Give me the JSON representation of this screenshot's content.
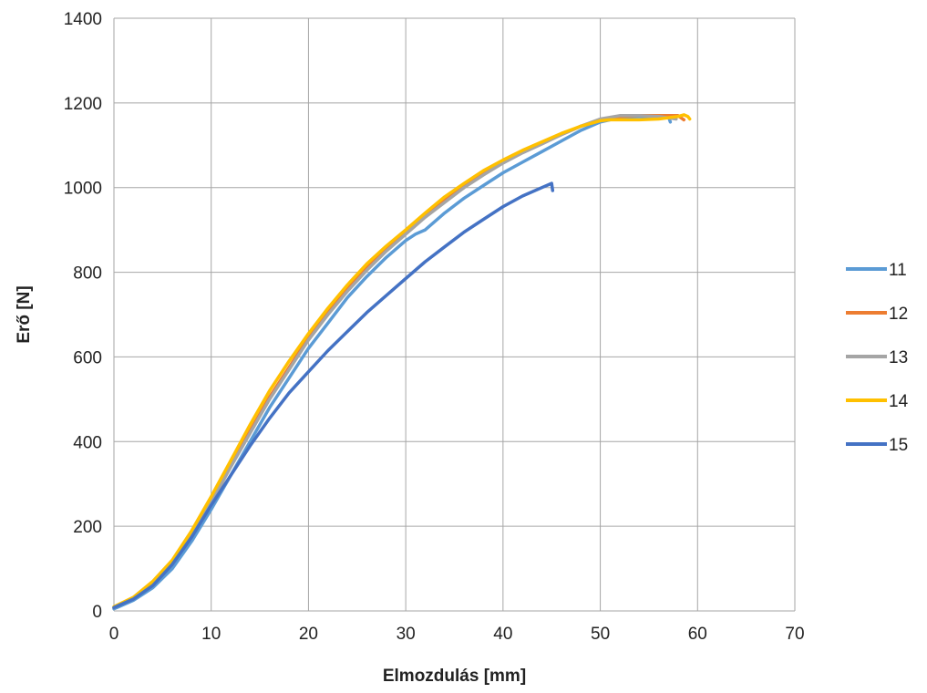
{
  "chart_data": {
    "type": "line",
    "title": "",
    "xlabel": "Elmozdulás [mm]",
    "ylabel": "Erő [N]",
    "xlim": [
      0,
      70
    ],
    "ylim": [
      0,
      1400
    ],
    "x_ticks": [
      0,
      10,
      20,
      30,
      40,
      50,
      60,
      70
    ],
    "y_ticks": [
      0,
      200,
      400,
      600,
      800,
      1000,
      1200,
      1400
    ],
    "grid": true,
    "legend_position": "right",
    "series": [
      {
        "name": "11",
        "color": "#5b9bd5",
        "x": [
          0,
          2,
          4,
          6,
          8,
          10,
          12,
          14,
          16,
          18,
          20,
          22,
          24,
          26,
          28,
          30,
          31,
          32,
          34,
          36,
          38,
          40,
          42,
          44,
          46,
          48,
          50,
          52,
          54,
          56,
          57,
          57.2
        ],
        "y": [
          5,
          25,
          55,
          100,
          165,
          240,
          320,
          400,
          480,
          550,
          620,
          680,
          740,
          790,
          835,
          875,
          890,
          900,
          940,
          975,
          1005,
          1035,
          1060,
          1085,
          1110,
          1135,
          1155,
          1165,
          1168,
          1168,
          1168,
          1155
        ]
      },
      {
        "name": "12",
        "color": "#ed7d31",
        "x": [
          0,
          2,
          4,
          6,
          8,
          10,
          12,
          14,
          16,
          18,
          20,
          22,
          24,
          26,
          28,
          30,
          32,
          34,
          36,
          38,
          40,
          42,
          44,
          46,
          48,
          50,
          52,
          54,
          56,
          58,
          58.6
        ],
        "y": [
          8,
          30,
          65,
          115,
          180,
          260,
          345,
          425,
          505,
          575,
          645,
          705,
          760,
          810,
          855,
          895,
          935,
          970,
          1005,
          1035,
          1060,
          1085,
          1105,
          1125,
          1145,
          1160,
          1168,
          1170,
          1170,
          1170,
          1160
        ]
      },
      {
        "name": "13",
        "color": "#a5a5a5",
        "x": [
          0,
          2,
          4,
          6,
          8,
          10,
          12,
          14,
          16,
          18,
          20,
          22,
          24,
          26,
          28,
          30,
          32,
          34,
          36,
          38,
          40,
          42,
          44,
          46,
          48,
          50,
          52,
          54,
          56,
          57.8
        ],
        "y": [
          8,
          30,
          65,
          115,
          180,
          255,
          340,
          420,
          500,
          570,
          640,
          700,
          755,
          805,
          850,
          890,
          930,
          965,
          1000,
          1030,
          1058,
          1082,
          1103,
          1125,
          1145,
          1162,
          1170,
          1170,
          1168,
          1162
        ]
      },
      {
        "name": "14",
        "color": "#ffc000",
        "x": [
          0,
          2,
          4,
          6,
          8,
          10,
          12,
          14,
          16,
          18,
          20,
          22,
          24,
          26,
          28,
          30,
          32,
          34,
          36,
          38,
          40,
          42,
          44,
          46,
          48,
          50,
          51,
          52,
          54,
          56,
          58,
          58.6,
          59,
          59.2
        ],
        "y": [
          10,
          32,
          70,
          120,
          190,
          270,
          355,
          440,
          520,
          590,
          655,
          715,
          770,
          820,
          862,
          900,
          940,
          978,
          1010,
          1040,
          1065,
          1088,
          1108,
          1128,
          1145,
          1158,
          1160,
          1160,
          1160,
          1162,
          1168,
          1172,
          1168,
          1162
        ]
      },
      {
        "name": "15",
        "color": "#4472c4",
        "x": [
          0,
          2,
          4,
          6,
          8,
          10,
          12,
          14,
          16,
          18,
          20,
          22,
          24,
          26,
          28,
          30,
          32,
          34,
          36,
          38,
          40,
          42,
          44,
          45,
          45.1
        ],
        "y": [
          8,
          28,
          60,
          110,
          175,
          250,
          320,
          390,
          455,
          515,
          565,
          615,
          660,
          705,
          745,
          785,
          825,
          860,
          895,
          925,
          955,
          980,
          1000,
          1010,
          993
        ]
      }
    ]
  }
}
